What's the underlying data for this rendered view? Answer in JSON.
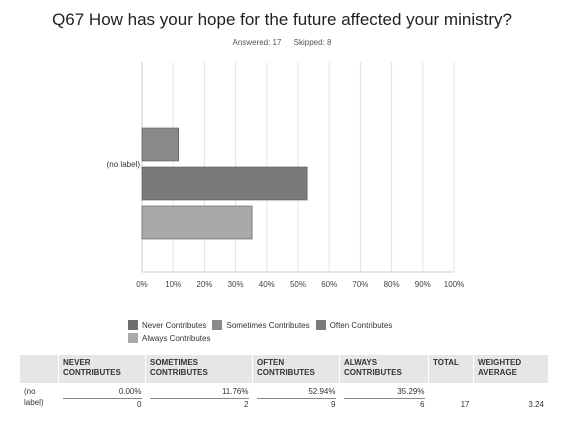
{
  "header": {
    "title": "Q67 How has your hope for the future affected your ministry?",
    "answered": "Answered: 17",
    "skipped": "Skipped: 8"
  },
  "chart_data": {
    "type": "bar",
    "orientation": "horizontal",
    "categories": [
      "(no label)"
    ],
    "series": [
      {
        "name": "Never Contributes",
        "values": [
          0.0
        ],
        "color": "#6e6e6e"
      },
      {
        "name": "Sometimes Contributes",
        "values": [
          11.76
        ],
        "color": "#8a8a8a"
      },
      {
        "name": "Often Contributes",
        "values": [
          52.94
        ],
        "color": "#7a7a7a"
      },
      {
        "name": "Always Contributes",
        "values": [
          35.29
        ],
        "color": "#a9a9a9"
      }
    ],
    "xlim": [
      0,
      100
    ],
    "xticks": [
      "0%",
      "10%",
      "20%",
      "30%",
      "40%",
      "50%",
      "60%",
      "70%",
      "80%",
      "90%",
      "100%"
    ],
    "grid": true,
    "legend": "bottom"
  },
  "table": {
    "headers": [
      "",
      "NEVER CONTRIBUTES",
      "SOMETIMES CONTRIBUTES",
      "OFTEN CONTRIBUTES",
      "ALWAYS CONTRIBUTES",
      "TOTAL",
      "WEIGHTED AVERAGE"
    ],
    "row": {
      "label": "(no label)",
      "percents": [
        "0.00%",
        "11.76%",
        "52.94%",
        "35.29%"
      ],
      "counts": [
        "0",
        "2",
        "9",
        "6"
      ],
      "total": "17",
      "weighted_average": "3.24"
    }
  }
}
